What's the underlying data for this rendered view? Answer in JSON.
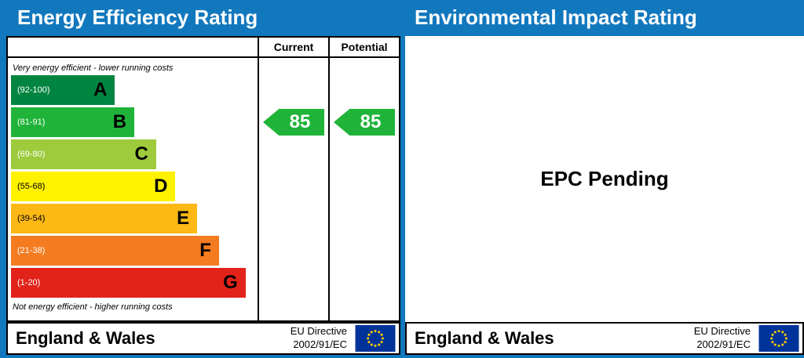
{
  "titles": {
    "left": "Energy Efficiency Rating",
    "right": "Environmental Impact Rating"
  },
  "columns": {
    "current": "Current",
    "potential": "Potential"
  },
  "notes": {
    "top": "Very energy efficient - lower running costs",
    "bottom": "Not energy efficient - higher running costs"
  },
  "bands": [
    {
      "letter": "A",
      "range": "(92-100)",
      "color": "#008540",
      "text_color": "#ffffff",
      "width_pct": "43%"
    },
    {
      "letter": "B",
      "range": "(81-91)",
      "color": "#1fb439",
      "text_color": "#ffffff",
      "width_pct": "51%"
    },
    {
      "letter": "C",
      "range": "(69-80)",
      "color": "#9dcb3b",
      "text_color": "#ffffff",
      "width_pct": "60%"
    },
    {
      "letter": "D",
      "range": "(55-68)",
      "color": "#fff200",
      "text_color": "#000000",
      "width_pct": "68%"
    },
    {
      "letter": "E",
      "range": "(39-54)",
      "color": "#fcb814",
      "text_color": "#000000",
      "width_pct": "77%"
    },
    {
      "letter": "F",
      "range": "(21-38)",
      "color": "#f47b20",
      "text_color": "#ffffff",
      "width_pct": "86%"
    },
    {
      "letter": "G",
      "range": "(1-20)",
      "color": "#e2231a",
      "text_color": "#ffffff",
      "width_pct": "97%"
    }
  ],
  "ratings": {
    "current": {
      "value": "85",
      "band": "B",
      "color": "#1fb439"
    },
    "potential": {
      "value": "85",
      "band": "B",
      "color": "#1fb439"
    }
  },
  "right_panel": {
    "pending": "EPC Pending"
  },
  "footer": {
    "region": "England & Wales",
    "eu_line1": "EU Directive",
    "eu_line2": "2002/91/EC"
  },
  "colors": {
    "header_blue": "#1278be",
    "eu_flag_blue": "#003399",
    "eu_star_yellow": "#ffcc00"
  },
  "chart_data": {
    "type": "bar",
    "title": "Energy Efficiency Rating",
    "categories": [
      "A (92-100)",
      "B (81-91)",
      "C (69-80)",
      "D (55-68)",
      "E (39-54)",
      "F (21-38)",
      "G (1-20)"
    ],
    "series": [
      {
        "name": "Current",
        "values": [
          85
        ]
      },
      {
        "name": "Potential",
        "values": [
          85
        ]
      }
    ],
    "current": 85,
    "potential": 85,
    "current_band": "B",
    "potential_band": "B",
    "scale_range": [
      1,
      100
    ],
    "legend_position": "top",
    "grid": false,
    "right_chart": {
      "title": "Environmental Impact Rating",
      "status": "EPC Pending"
    }
  }
}
